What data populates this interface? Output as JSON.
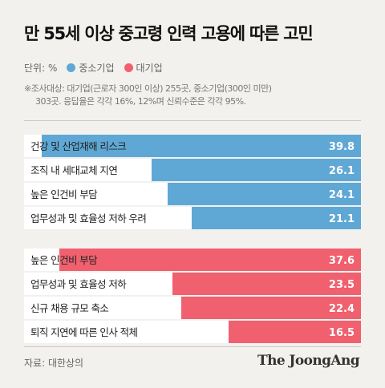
{
  "title": "만 55세 이상 중고령 인력 고용에 따른 고민",
  "legend": {
    "unit_label": "단위: %",
    "items": [
      {
        "label": "중소기업",
        "color": "#5fa8d6"
      },
      {
        "label": "대기업",
        "color": "#f0606e"
      }
    ]
  },
  "note": {
    "line1": "※조사대상: 대기업(근로자 300인 이상) 255곳, 중소기업(300인 미만)",
    "line2": "303곳. 응답율은 각각 16%, 12%며 신뢰수준은 각각 95%."
  },
  "source": "자료: 대한상의",
  "brand": "The JoongAng",
  "colors": {
    "sme": "#5fa8d6",
    "large": "#f0606e",
    "sme_text": "#2f8fc6",
    "large_text": "#d0283b",
    "inside_text": "#ffffff"
  },
  "chart_data": [
    {
      "type": "bar",
      "orientation": "horizontal",
      "series_name": "중소기업",
      "categories": [
        "건강 및 산업재해 리스크",
        "조직 내 세대교체 지연",
        "높은 인건비 부담",
        "업무성과 및 효율성 저하 우려"
      ],
      "values": [
        39.8,
        26.1,
        24.1,
        21.1
      ],
      "xlim": [
        0,
        42
      ]
    },
    {
      "type": "bar",
      "orientation": "horizontal",
      "series_name": "대기업",
      "categories": [
        "높은 인건비 부담",
        "업무성과 및 효율성 저하",
        "신규 채용 규모 축소",
        "퇴직 지연에 따른 인사 적체"
      ],
      "values": [
        37.6,
        23.5,
        22.4,
        16.5
      ],
      "xlim": [
        0,
        42
      ]
    }
  ]
}
